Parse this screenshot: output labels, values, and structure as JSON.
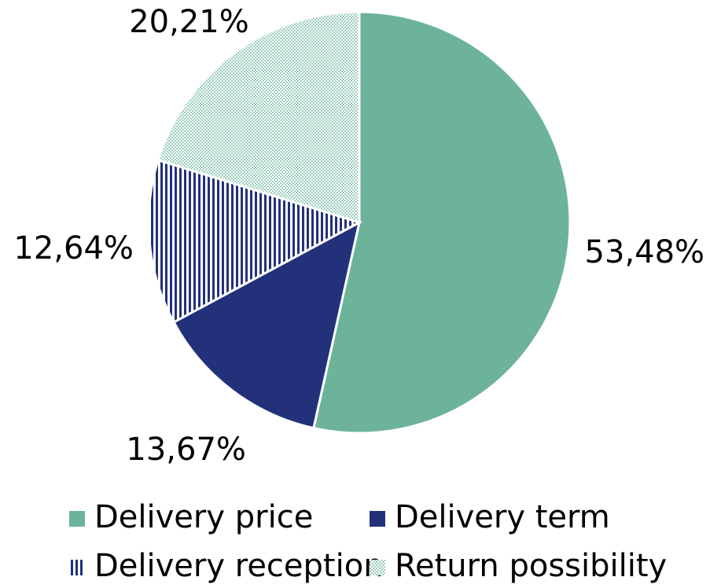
{
  "chart_data": {
    "type": "pie",
    "categories": [
      "Delivery price",
      "Delivery term",
      "Delivery reception",
      "Return possibility"
    ],
    "values": [
      53.48,
      13.67,
      12.64,
      20.21
    ],
    "value_labels": [
      "53,48%",
      "13,67%",
      "12,64%",
      "20,21%"
    ],
    "colors": [
      "#6db39a",
      "#22317a",
      "#22317a",
      "#9ccfbb"
    ],
    "patterns": [
      "solid",
      "solid",
      "stripes",
      "dots"
    ],
    "legend": "bottom"
  }
}
